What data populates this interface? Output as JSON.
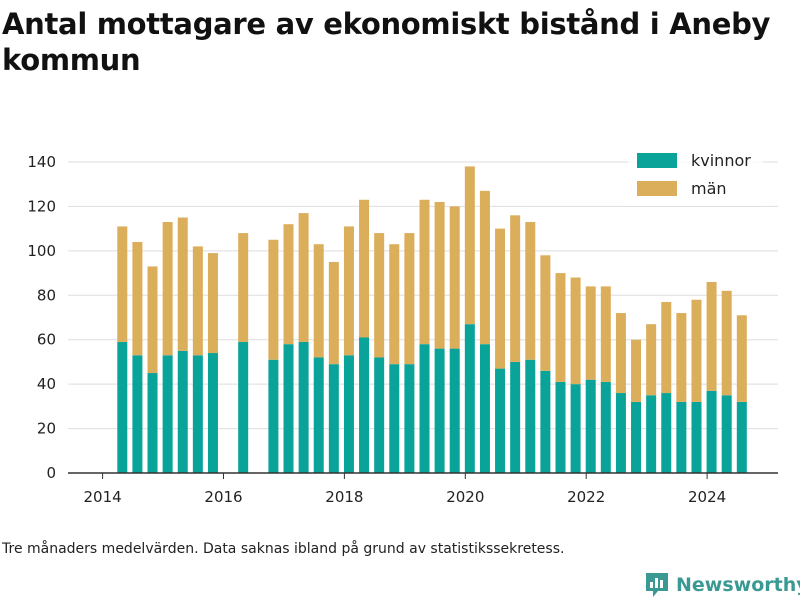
{
  "title": "Antal mottagare av ekonomiskt bistånd i Aneby kommun",
  "note": "Tre månaders medelvärden. Data saknas ibland på grund av statistikssekretess.",
  "brand": "Newsworthy",
  "colors": {
    "kvinnor": "#0aa39a",
    "man": "#dbae5b",
    "grid": "#dedede",
    "axis": "#333333",
    "brand": "#3a9a93"
  },
  "chart_data": {
    "type": "bar",
    "stacked": true,
    "xlabel": "",
    "ylabel": "",
    "ylim": [
      0,
      140
    ],
    "yticks": [
      0,
      20,
      40,
      60,
      80,
      100,
      120,
      140
    ],
    "xticks": [
      "2014",
      "2016",
      "2018",
      "2020",
      "2022",
      "2024"
    ],
    "grid": true,
    "legend": "top-right",
    "categories": [
      "2014 Q3",
      "2014 Q4",
      "2015 Q1",
      "2015 Q2",
      "2015 Q3",
      "2015 Q4",
      "2016 Q1",
      "2016 Q2",
      "2016 Q3",
      "2016 Q4",
      "2017 Q1",
      "2017 Q2",
      "2017 Q3",
      "2017 Q4",
      "2018 Q1",
      "2018 Q2",
      "2018 Q3",
      "2018 Q4",
      "2019 Q1",
      "2019 Q2",
      "2019 Q3",
      "2019 Q4",
      "2020 Q1",
      "2020 Q2",
      "2020 Q3",
      "2020 Q4",
      "2021 Q1",
      "2021 Q2",
      "2021 Q3",
      "2021 Q4",
      "2022 Q1",
      "2022 Q2",
      "2022 Q3",
      "2022 Q4",
      "2023 Q1",
      "2023 Q2",
      "2023 Q3",
      "2023 Q4",
      "2024 Q1",
      "2024 Q2",
      "2024 Q3",
      "2024 Q4"
    ],
    "series": [
      {
        "name": "kvinnor",
        "values": [
          59,
          53,
          45,
          53,
          55,
          53,
          54,
          null,
          59,
          null,
          51,
          58,
          59,
          52,
          49,
          53,
          61,
          52,
          49,
          49,
          58,
          56,
          56,
          67,
          58,
          47,
          50,
          51,
          46,
          41,
          40,
          42,
          41,
          36,
          32,
          35,
          36,
          32,
          32,
          37,
          35,
          32
        ]
      },
      {
        "name": "män",
        "values": [
          52,
          51,
          48,
          60,
          60,
          49,
          45,
          null,
          49,
          null,
          54,
          54,
          58,
          51,
          46,
          58,
          62,
          56,
          54,
          59,
          65,
          66,
          64,
          71,
          69,
          63,
          66,
          62,
          52,
          49,
          48,
          42,
          43,
          36,
          28,
          32,
          41,
          40,
          46,
          49,
          47,
          39
        ]
      }
    ]
  }
}
